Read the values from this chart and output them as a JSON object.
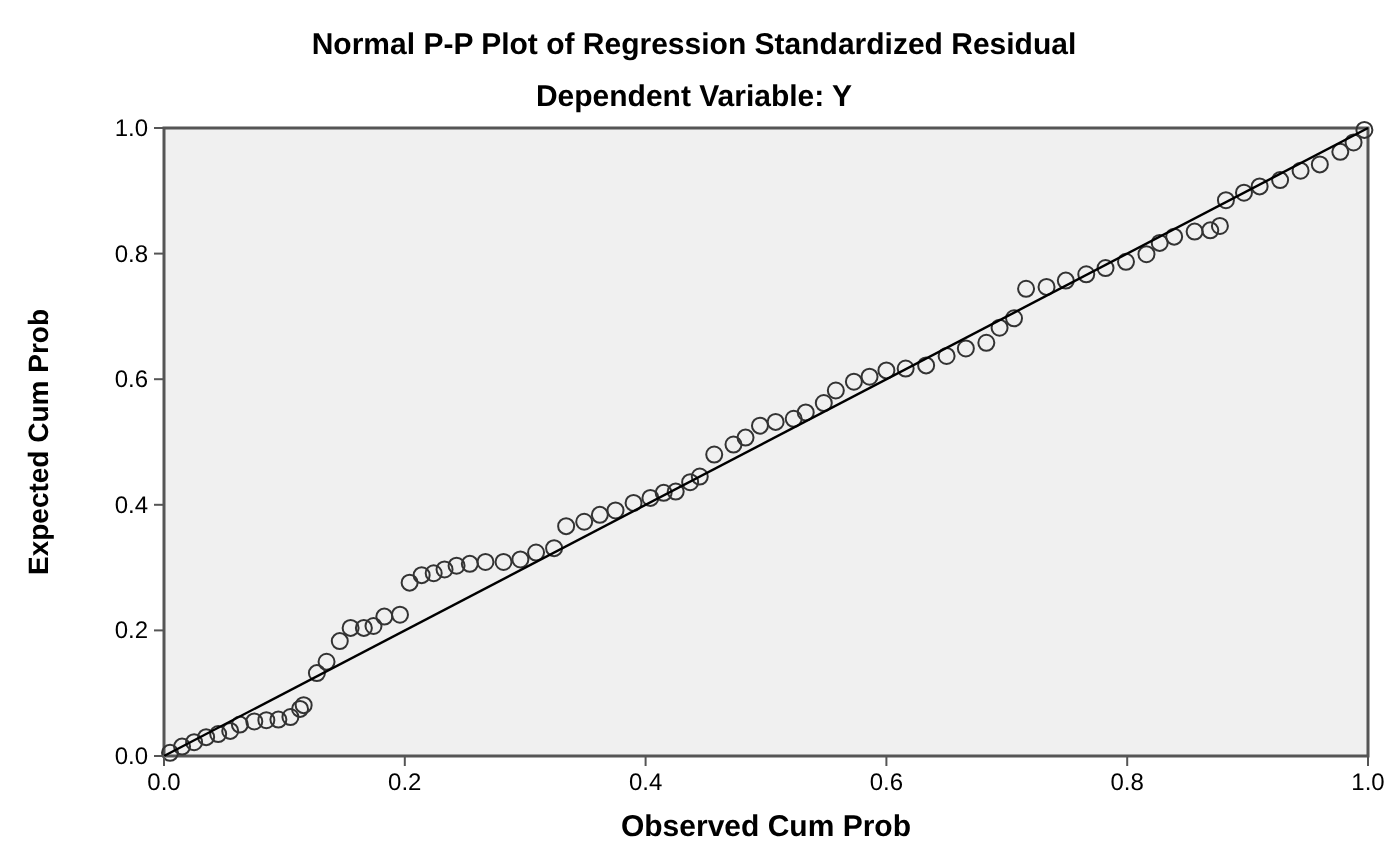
{
  "chart_data": {
    "type": "scatter",
    "title": "Normal P-P Plot of Regression Standardized Residual",
    "subtitle": "Dependent Variable: Y",
    "xlabel": "Observed Cum Prob",
    "ylabel": "Expected Cum Prob",
    "xlim": [
      0,
      1
    ],
    "ylim": [
      0,
      1
    ],
    "xticks": [
      {
        "value": 0,
        "label": "0.0"
      },
      {
        "value": 0.2,
        "label": "0.2"
      },
      {
        "value": 0.4,
        "label": "0.4"
      },
      {
        "value": 0.6,
        "label": "0.6"
      },
      {
        "value": 0.8,
        "label": "0.8"
      },
      {
        "value": 1,
        "label": "1.0"
      }
    ],
    "yticks": [
      {
        "value": 0,
        "label": "0.0"
      },
      {
        "value": 0.2,
        "label": "0.2"
      },
      {
        "value": 0.4,
        "label": "0.4"
      },
      {
        "value": 0.6,
        "label": "0.6"
      },
      {
        "value": 0.8,
        "label": "0.8"
      },
      {
        "value": 1,
        "label": "1.0"
      }
    ],
    "grid": false,
    "series": [
      {
        "color": "#333333",
        "marker": "circle",
        "x": [
          0.005,
          0.015,
          0.025,
          0.035,
          0.045,
          0.055,
          0.063,
          0.075,
          0.085,
          0.095,
          0.105,
          0.113,
          0.116,
          0.127,
          0.135,
          0.146,
          0.155,
          0.166,
          0.174,
          0.183,
          0.196,
          0.204,
          0.214,
          0.224,
          0.233,
          0.243,
          0.254,
          0.267,
          0.282,
          0.296,
          0.309,
          0.324,
          0.334,
          0.349,
          0.362,
          0.375,
          0.39,
          0.404,
          0.415,
          0.425,
          0.437,
          0.445,
          0.457,
          0.473,
          0.483,
          0.495,
          0.508,
          0.523,
          0.533,
          0.548,
          0.558,
          0.573,
          0.586,
          0.6,
          0.616,
          0.633,
          0.65,
          0.666,
          0.683,
          0.694,
          0.706,
          0.716,
          0.733,
          0.749,
          0.766,
          0.782,
          0.799,
          0.816,
          0.827,
          0.839,
          0.856,
          0.869,
          0.877,
          0.882,
          0.897,
          0.91,
          0.927,
          0.944,
          0.96,
          0.977,
          0.988,
          0.997
        ],
        "values": [
          0.005,
          0.015,
          0.022,
          0.03,
          0.035,
          0.04,
          0.05,
          0.055,
          0.057,
          0.058,
          0.062,
          0.075,
          0.081,
          0.132,
          0.15,
          0.183,
          0.204,
          0.204,
          0.207,
          0.222,
          0.225,
          0.276,
          0.288,
          0.291,
          0.297,
          0.303,
          0.306,
          0.309,
          0.309,
          0.313,
          0.324,
          0.331,
          0.366,
          0.373,
          0.384,
          0.391,
          0.403,
          0.411,
          0.419,
          0.421,
          0.436,
          0.445,
          0.48,
          0.496,
          0.507,
          0.526,
          0.532,
          0.537,
          0.547,
          0.562,
          0.582,
          0.596,
          0.604,
          0.614,
          0.617,
          0.622,
          0.637,
          0.649,
          0.658,
          0.682,
          0.697,
          0.744,
          0.747,
          0.757,
          0.767,
          0.777,
          0.787,
          0.799,
          0.817,
          0.827,
          0.835,
          0.837,
          0.844,
          0.885,
          0.897,
          0.907,
          0.917,
          0.932,
          0.942,
          0.962,
          0.977,
          0.997
        ]
      },
      {
        "type": "line",
        "color": "#000000",
        "x": [
          0,
          1
        ],
        "values": [
          0,
          1
        ]
      }
    ]
  }
}
